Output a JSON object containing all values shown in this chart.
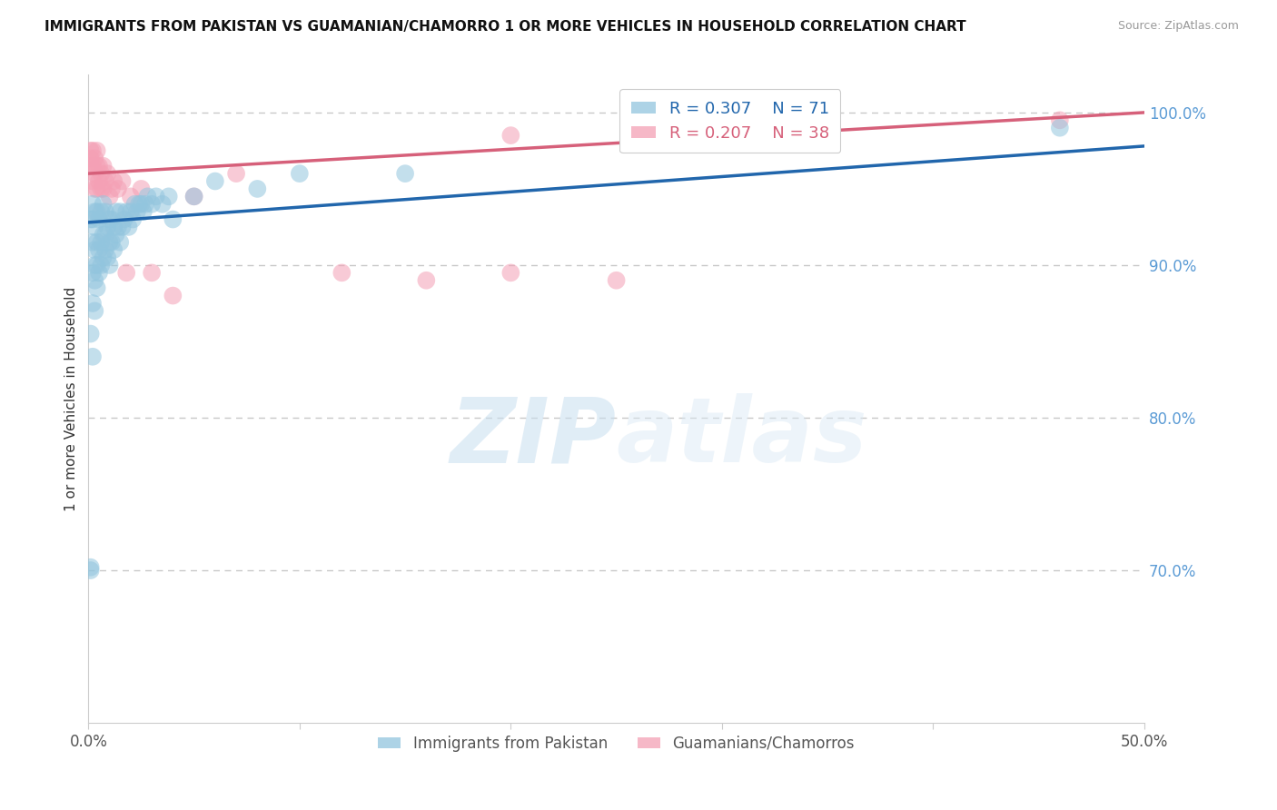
{
  "title": "IMMIGRANTS FROM PAKISTAN VS GUAMANIAN/CHAMORRO 1 OR MORE VEHICLES IN HOUSEHOLD CORRELATION CHART",
  "source": "Source: ZipAtlas.com",
  "ylabel": "1 or more Vehicles in Household",
  "xmin": 0.0,
  "xmax": 0.5,
  "ymin": 0.6,
  "ymax": 1.025,
  "y_ticks_right": [
    0.7,
    0.8,
    0.9,
    1.0
  ],
  "y_tick_labels_right": [
    "70.0%",
    "80.0%",
    "90.0%",
    "100.0%"
  ],
  "legend_blue_r": "0.307",
  "legend_blue_n": "71",
  "legend_pink_r": "0.207",
  "legend_pink_n": "38",
  "legend_label_blue": "Immigrants from Pakistan",
  "legend_label_pink": "Guamanians/Chamorros",
  "blue_color": "#92c5de",
  "pink_color": "#f4a0b5",
  "blue_line_color": "#2166ac",
  "pink_line_color": "#d6607a",
  "blue_scatter_x": [
    0.001,
    0.001,
    0.001,
    0.002,
    0.002,
    0.002,
    0.002,
    0.002,
    0.002,
    0.003,
    0.003,
    0.003,
    0.003,
    0.003,
    0.003,
    0.004,
    0.004,
    0.004,
    0.004,
    0.005,
    0.005,
    0.005,
    0.006,
    0.006,
    0.006,
    0.007,
    0.007,
    0.007,
    0.008,
    0.008,
    0.008,
    0.009,
    0.009,
    0.01,
    0.01,
    0.01,
    0.011,
    0.011,
    0.012,
    0.012,
    0.013,
    0.013,
    0.014,
    0.015,
    0.015,
    0.016,
    0.017,
    0.018,
    0.019,
    0.02,
    0.021,
    0.022,
    0.023,
    0.024,
    0.025,
    0.026,
    0.027,
    0.028,
    0.03,
    0.032,
    0.035,
    0.038,
    0.04,
    0.05,
    0.06,
    0.08,
    0.1,
    0.15,
    0.31,
    0.46,
    0.001
  ],
  "blue_scatter_y": [
    0.7,
    0.702,
    0.93,
    0.84,
    0.875,
    0.895,
    0.915,
    0.93,
    0.94,
    0.87,
    0.89,
    0.9,
    0.91,
    0.925,
    0.935,
    0.885,
    0.9,
    0.915,
    0.935,
    0.895,
    0.91,
    0.93,
    0.9,
    0.915,
    0.935,
    0.905,
    0.92,
    0.94,
    0.91,
    0.92,
    0.935,
    0.905,
    0.925,
    0.9,
    0.915,
    0.93,
    0.915,
    0.93,
    0.91,
    0.925,
    0.92,
    0.935,
    0.925,
    0.915,
    0.935,
    0.925,
    0.93,
    0.935,
    0.925,
    0.935,
    0.93,
    0.94,
    0.935,
    0.94,
    0.94,
    0.935,
    0.94,
    0.945,
    0.94,
    0.945,
    0.94,
    0.945,
    0.93,
    0.945,
    0.955,
    0.95,
    0.96,
    0.96,
    0.985,
    0.99,
    0.855
  ],
  "pink_scatter_x": [
    0.001,
    0.001,
    0.001,
    0.002,
    0.002,
    0.002,
    0.003,
    0.003,
    0.003,
    0.004,
    0.004,
    0.004,
    0.005,
    0.005,
    0.006,
    0.006,
    0.007,
    0.007,
    0.008,
    0.009,
    0.01,
    0.011,
    0.012,
    0.014,
    0.016,
    0.018,
    0.02,
    0.025,
    0.03,
    0.04,
    0.05,
    0.07,
    0.12,
    0.16,
    0.2,
    0.25,
    0.46,
    0.2
  ],
  "pink_scatter_y": [
    0.965,
    0.97,
    0.975,
    0.955,
    0.965,
    0.975,
    0.95,
    0.96,
    0.97,
    0.95,
    0.965,
    0.975,
    0.955,
    0.965,
    0.95,
    0.96,
    0.95,
    0.965,
    0.955,
    0.96,
    0.945,
    0.95,
    0.955,
    0.95,
    0.955,
    0.895,
    0.945,
    0.95,
    0.895,
    0.88,
    0.945,
    0.96,
    0.895,
    0.89,
    0.895,
    0.89,
    0.995,
    0.985
  ],
  "blue_trend_x0": 0.0,
  "blue_trend_x1": 0.5,
  "blue_trend_y0": 0.928,
  "blue_trend_y1": 0.978,
  "pink_trend_x0": 0.0,
  "pink_trend_x1": 0.5,
  "pink_trend_y0": 0.96,
  "pink_trend_y1": 1.0,
  "watermark_zip": "ZIP",
  "watermark_atlas": "atlas",
  "figsize": [
    14.06,
    8.92
  ],
  "dpi": 100
}
